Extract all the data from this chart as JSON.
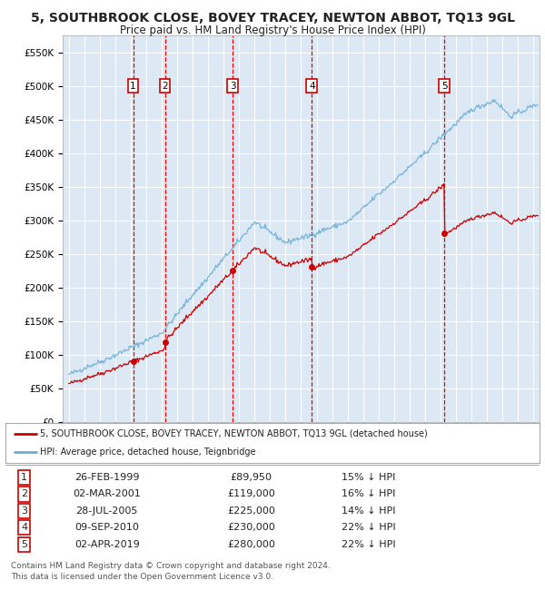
{
  "title": "5, SOUTHBROOK CLOSE, BOVEY TRACEY, NEWTON ABBOT, TQ13 9GL",
  "subtitle": "Price paid vs. HM Land Registry's House Price Index (HPI)",
  "title_fontsize": 10,
  "subtitle_fontsize": 8.5,
  "background_color": "#ffffff",
  "plot_bg_color": "#dce9f5",
  "grid_color": "#ffffff",
  "purchases": [
    {
      "num": 1,
      "date_label": "26-FEB-1999",
      "year": 1999.15,
      "price": 89950,
      "pct": "15% ↓ HPI"
    },
    {
      "num": 2,
      "date_label": "02-MAR-2001",
      "year": 2001.2,
      "price": 119000,
      "pct": "16% ↓ HPI"
    },
    {
      "num": 3,
      "date_label": "28-JUL-2005",
      "year": 2005.57,
      "price": 225000,
      "pct": "14% ↓ HPI"
    },
    {
      "num": 4,
      "date_label": "09-SEP-2010",
      "year": 2010.69,
      "price": 230000,
      "pct": "22% ↓ HPI"
    },
    {
      "num": 5,
      "date_label": "02-APR-2019",
      "year": 2019.25,
      "price": 280000,
      "pct": "22% ↓ HPI"
    }
  ],
  "hpi_line_color": "#6baed6",
  "price_line_color": "#cc0000",
  "marker_color": "#cc0000",
  "dashed_color": "#ee0000",
  "xmin": 1994.6,
  "xmax": 2025.4,
  "ymin": 0,
  "ymax": 575000,
  "yticks": [
    0,
    50000,
    100000,
    150000,
    200000,
    250000,
    300000,
    350000,
    400000,
    450000,
    500000,
    550000
  ],
  "ytick_labels": [
    "£0",
    "£50K",
    "£100K",
    "£150K",
    "£200K",
    "£250K",
    "£300K",
    "£350K",
    "£400K",
    "£450K",
    "£500K",
    "£550K"
  ],
  "legend_line1": "5, SOUTHBROOK CLOSE, BOVEY TRACEY, NEWTON ABBOT, TQ13 9GL (detached house)",
  "legend_line2": "HPI: Average price, detached house, Teignbridge",
  "row_data": [
    [
      "1",
      "26-FEB-1999",
      "£89,950",
      "15% ↓ HPI"
    ],
    [
      "2",
      "02-MAR-2001",
      "£119,000",
      "16% ↓ HPI"
    ],
    [
      "3",
      "28-JUL-2005",
      "£225,000",
      "14% ↓ HPI"
    ],
    [
      "4",
      "09-SEP-2010",
      "£230,000",
      "22% ↓ HPI"
    ],
    [
      "5",
      "02-APR-2019",
      "£280,000",
      "22% ↓ HPI"
    ]
  ],
  "footer1": "Contains HM Land Registry data © Crown copyright and database right 2024.",
  "footer2": "This data is licensed under the Open Government Licence v3.0."
}
